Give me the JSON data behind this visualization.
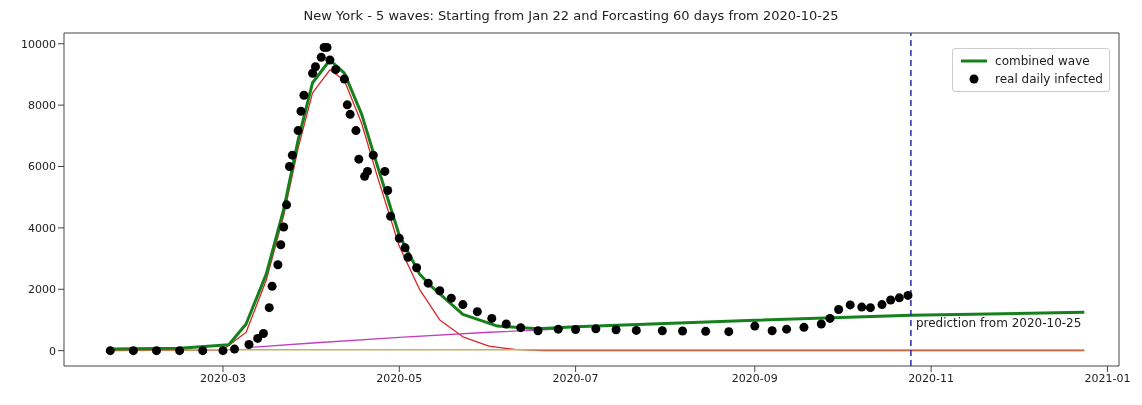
{
  "chart_data": {
    "type": "line",
    "title": "New York - 5 waves: Starting from Jan 22 and Forcasting 60 days from 2020-10-25",
    "xlim": [
      "2020-01-06",
      "2021-01-05"
    ],
    "xticks": [
      {
        "value": "2020-03-01",
        "label": "2020-03"
      },
      {
        "value": "2020-05-01",
        "label": "2020-05"
      },
      {
        "value": "2020-07-01",
        "label": "2020-07"
      },
      {
        "value": "2020-09-01",
        "label": "2020-09"
      },
      {
        "value": "2020-11-01",
        "label": "2020-11"
      },
      {
        "value": "2021-01-01",
        "label": "2021-01"
      }
    ],
    "ylim": [
      -500,
      10350
    ],
    "yticks": [
      0,
      2000,
      4000,
      6000,
      8000,
      10000
    ],
    "grid": false,
    "legend": "top right",
    "line_style": "solid",
    "series": [
      {
        "color": "#d62728",
        "x": [
          "2020-01-22",
          "2020-03-01",
          "2020-03-09",
          "2020-03-16",
          "2020-03-22",
          "2020-03-27",
          "2020-04-01",
          "2020-04-07",
          "2020-04-12",
          "2020-04-18",
          "2020-04-23",
          "2020-05-01",
          "2020-05-08",
          "2020-05-15",
          "2020-05-23",
          "2020-06-01",
          "2020-06-10",
          "2020-06-20",
          "2020-12-24"
        ],
        "values": [
          0,
          30,
          600,
          2300,
          4400,
          6600,
          8400,
          9150,
          8800,
          7400,
          5800,
          3400,
          2000,
          1000,
          450,
          150,
          40,
          0,
          0
        ]
      },
      {
        "color": "#c040c0",
        "x": [
          "2020-03-09",
          "2020-04-01",
          "2020-05-01",
          "2020-06-01",
          "2020-06-25"
        ],
        "values": [
          100,
          250,
          430,
          600,
          700
        ]
      },
      {
        "color": "#c8b060",
        "x": [
          "2020-01-22",
          "2020-12-24"
        ],
        "values": [
          30,
          30
        ]
      },
      {
        "name": "combined wave",
        "color": "#16801c",
        "x": [
          "2020-01-22",
          "2020-02-15",
          "2020-03-03",
          "2020-03-09",
          "2020-03-16",
          "2020-03-22",
          "2020-03-27",
          "2020-04-01",
          "2020-04-07",
          "2020-04-12",
          "2020-04-18",
          "2020-04-23",
          "2020-05-01",
          "2020-05-08",
          "2020-05-12",
          "2020-05-23",
          "2020-06-04",
          "2020-06-18",
          "2020-07-01",
          "2020-09-01",
          "2020-10-25",
          "2020-12-24"
        ],
        "values": [
          50,
          80,
          190,
          870,
          2500,
          4600,
          6860,
          8730,
          9470,
          9040,
          7700,
          6150,
          3760,
          2500,
          2100,
          1180,
          800,
          710,
          780,
          990,
          1150,
          1250
        ]
      },
      {
        "type": "scatter",
        "name": "real daily infected",
        "color": "#000000",
        "marker": "circle",
        "x": [
          "2020-01-22",
          "2020-01-30",
          "2020-02-07",
          "2020-02-15",
          "2020-02-23",
          "2020-03-01",
          "2020-03-05",
          "2020-03-10",
          "2020-03-13",
          "2020-03-15",
          "2020-03-17",
          "2020-03-18",
          "2020-03-20",
          "2020-03-21",
          "2020-03-22",
          "2020-03-23",
          "2020-03-24",
          "2020-03-25",
          "2020-03-27",
          "2020-03-28",
          "2020-03-29",
          "2020-04-01",
          "2020-04-02",
          "2020-04-04",
          "2020-04-05",
          "2020-04-06",
          "2020-04-07",
          "2020-04-09",
          "2020-04-12",
          "2020-04-13",
          "2020-04-14",
          "2020-04-16",
          "2020-04-17",
          "2020-04-19",
          "2020-04-20",
          "2020-04-22",
          "2020-04-26",
          "2020-04-27",
          "2020-04-28",
          "2020-05-01",
          "2020-05-03",
          "2020-05-04",
          "2020-05-07",
          "2020-05-11",
          "2020-05-15",
          "2020-05-19",
          "2020-05-23",
          "2020-05-28",
          "2020-06-02",
          "2020-06-07",
          "2020-06-12",
          "2020-06-18",
          "2020-06-25",
          "2020-07-01",
          "2020-07-08",
          "2020-07-15",
          "2020-07-22",
          "2020-07-31",
          "2020-08-07",
          "2020-08-15",
          "2020-08-23",
          "2020-09-01",
          "2020-09-07",
          "2020-09-12",
          "2020-09-18",
          "2020-09-24",
          "2020-09-27",
          "2020-09-30",
          "2020-10-04",
          "2020-10-08",
          "2020-10-11",
          "2020-10-15",
          "2020-10-18",
          "2020-10-21",
          "2020-10-24"
        ],
        "values": [
          0,
          0,
          0,
          0,
          0,
          0,
          50,
          200,
          400,
          560,
          1400,
          2100,
          2800,
          3450,
          4030,
          4750,
          6000,
          6370,
          7170,
          7800,
          8320,
          9040,
          9250,
          9560,
          9880,
          9880,
          9470,
          9160,
          8850,
          8010,
          7700,
          7170,
          6240,
          5680,
          5840,
          6370,
          5840,
          5220,
          4380,
          3660,
          3350,
          3040,
          2700,
          2200,
          1950,
          1710,
          1500,
          1270,
          1050,
          870,
          750,
          650,
          700,
          690,
          710,
          680,
          660,
          650,
          640,
          630,
          620,
          800,
          650,
          700,
          760,
          870,
          1050,
          1340,
          1490,
          1420,
          1400,
          1500,
          1650,
          1720,
          1800
        ]
      }
    ],
    "ref_lines": [
      {
        "axis": "x",
        "value": "2020-10-25",
        "color": "#2a2aa8",
        "line_style": "dashed"
      }
    ],
    "annotations": [
      {
        "text": "prediction from 2020-10-25",
        "x": "2020-10-25",
        "y": 900
      }
    ]
  }
}
